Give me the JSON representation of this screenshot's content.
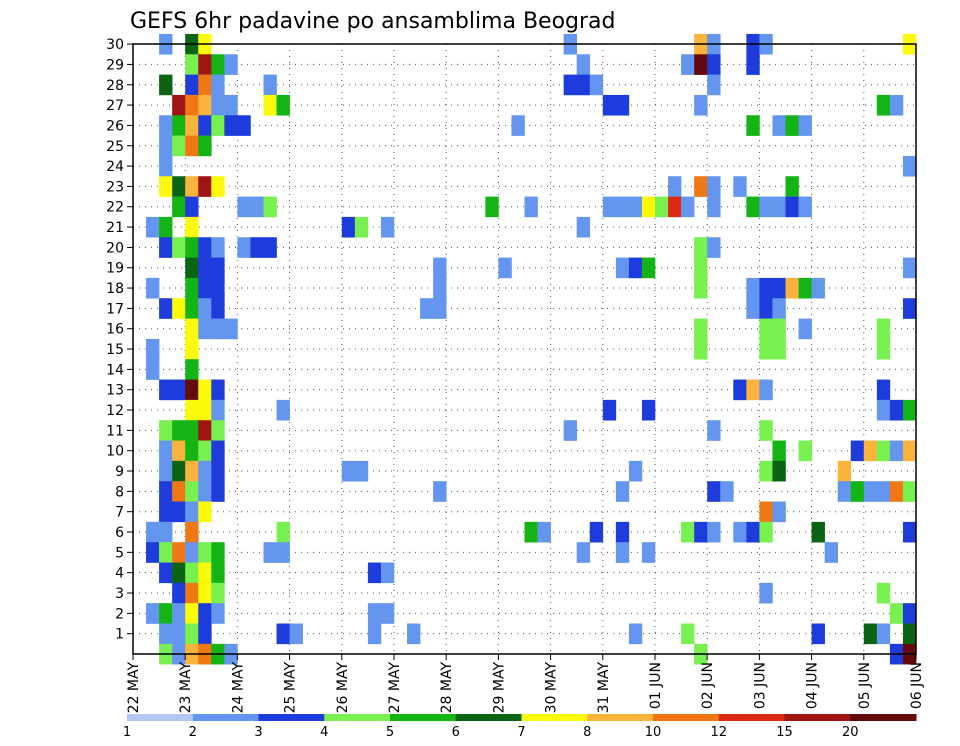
{
  "chart_data": {
    "type": "heatmap",
    "title": "GEFS 6hr padavine po ansamblima Beograd",
    "y_tick_labels": [
      "1",
      "2",
      "3",
      "4",
      "5",
      "6",
      "7",
      "8",
      "9",
      "10",
      "11",
      "12",
      "13",
      "14",
      "15",
      "16",
      "17",
      "18",
      "19",
      "20",
      "21",
      "22",
      "23",
      "24",
      "25",
      "26",
      "27",
      "28",
      "29",
      "30"
    ],
    "x_tick_labels": [
      "22 MAY",
      "23 MAY",
      "24 MAY",
      "25 MAY",
      "26 MAY",
      "27 MAY",
      "28 MAY",
      "29 MAY",
      "30 MAY",
      "31 MAY",
      "01 JUN",
      "02 JUN",
      "03 JUN",
      "04 JUN",
      "05 JUN",
      "06 JUN"
    ],
    "colorbar": {
      "colors": [
        "#b4c8f5",
        "#6496f0",
        "#1e3cdc",
        "#78f050",
        "#14b414",
        "#0a6414",
        "#fafa0a",
        "#fab43c",
        "#f07814",
        "#dc2814",
        "#a01414",
        "#640a0a"
      ],
      "labels": [
        "1",
        "2",
        "3",
        "4",
        "5",
        "6",
        "7",
        "8",
        "10",
        "12",
        "15",
        "20"
      ]
    },
    "cells": [
      [
        0.5,
        30,
        1
      ],
      [
        1,
        30,
        5
      ],
      [
        1.25,
        30,
        6
      ],
      [
        8.25,
        30,
        1
      ],
      [
        10.75,
        30,
        7
      ],
      [
        11,
        30,
        1
      ],
      [
        11.75,
        30,
        2
      ],
      [
        12,
        30,
        1
      ],
      [
        14.75,
        30,
        6
      ],
      [
        1,
        29,
        3
      ],
      [
        1.25,
        29,
        10
      ],
      [
        1.5,
        29,
        4
      ],
      [
        1.75,
        29,
        1
      ],
      [
        8.5,
        29,
        1
      ],
      [
        10.5,
        29,
        1
      ],
      [
        10.75,
        29,
        11
      ],
      [
        11,
        29,
        2
      ],
      [
        11.75,
        29,
        2
      ],
      [
        0.5,
        28,
        5
      ],
      [
        1,
        28,
        2
      ],
      [
        1.25,
        28,
        8
      ],
      [
        1.5,
        28,
        1
      ],
      [
        2.5,
        28,
        1
      ],
      [
        8.25,
        28,
        2
      ],
      [
        8.5,
        28,
        2
      ],
      [
        8.75,
        28,
        1
      ],
      [
        11,
        28,
        1
      ],
      [
        0.75,
        27,
        10
      ],
      [
        1,
        27,
        8
      ],
      [
        1.25,
        27,
        7
      ],
      [
        1.5,
        27,
        1
      ],
      [
        1.75,
        27,
        1
      ],
      [
        2.5,
        27,
        6
      ],
      [
        2.75,
        27,
        4
      ],
      [
        9,
        27,
        2
      ],
      [
        9.25,
        27,
        2
      ],
      [
        10.75,
        27,
        1
      ],
      [
        14.25,
        27,
        4
      ],
      [
        14.5,
        27,
        1
      ],
      [
        0.5,
        26,
        1
      ],
      [
        0.75,
        26,
        4
      ],
      [
        1,
        26,
        7
      ],
      [
        1.25,
        26,
        2
      ],
      [
        1.5,
        26,
        3
      ],
      [
        1.75,
        26,
        2
      ],
      [
        2,
        26,
        2
      ],
      [
        7.25,
        26,
        1
      ],
      [
        11.75,
        26,
        4
      ],
      [
        12.25,
        26,
        1
      ],
      [
        12.5,
        26,
        4
      ],
      [
        12.75,
        26,
        1
      ],
      [
        0.5,
        25,
        1
      ],
      [
        0.75,
        25,
        3
      ],
      [
        1,
        25,
        8
      ],
      [
        1.25,
        25,
        4
      ],
      [
        0.5,
        24,
        1
      ],
      [
        14.75,
        24,
        1
      ],
      [
        0.5,
        23,
        6
      ],
      [
        0.75,
        23,
        5
      ],
      [
        1,
        23,
        7
      ],
      [
        1.25,
        23,
        10
      ],
      [
        1.5,
        23,
        6
      ],
      [
        10.25,
        23,
        1
      ],
      [
        10.75,
        23,
        8
      ],
      [
        11,
        23,
        1
      ],
      [
        11.5,
        23,
        1
      ],
      [
        12.5,
        23,
        4
      ],
      [
        0.75,
        22,
        4
      ],
      [
        1,
        22,
        2
      ],
      [
        2,
        22,
        1
      ],
      [
        2.25,
        22,
        1
      ],
      [
        2.5,
        22,
        3
      ],
      [
        6.75,
        22,
        4
      ],
      [
        7.5,
        22,
        1
      ],
      [
        9,
        22,
        1
      ],
      [
        9.25,
        22,
        1
      ],
      [
        9.5,
        22,
        1
      ],
      [
        9.75,
        22,
        6
      ],
      [
        10,
        22,
        3
      ],
      [
        10.25,
        22,
        9
      ],
      [
        10.5,
        22,
        1
      ],
      [
        11,
        22,
        1
      ],
      [
        11.75,
        22,
        4
      ],
      [
        12,
        22,
        1
      ],
      [
        12.25,
        22,
        1
      ],
      [
        12.5,
        22,
        2
      ],
      [
        12.75,
        22,
        1
      ],
      [
        0.25,
        21,
        1
      ],
      [
        0.5,
        21,
        4
      ],
      [
        1,
        21,
        6
      ],
      [
        4,
        21,
        2
      ],
      [
        4.25,
        21,
        3
      ],
      [
        4.75,
        21,
        1
      ],
      [
        8.5,
        21,
        1
      ],
      [
        0.5,
        20,
        2
      ],
      [
        0.75,
        20,
        3
      ],
      [
        1,
        20,
        4
      ],
      [
        1.25,
        20,
        2
      ],
      [
        1.5,
        20,
        1
      ],
      [
        2,
        20,
        1
      ],
      [
        2.25,
        20,
        2
      ],
      [
        2.5,
        20,
        2
      ],
      [
        10.75,
        20,
        3
      ],
      [
        11,
        20,
        1
      ],
      [
        1,
        19,
        5
      ],
      [
        1.25,
        19,
        2
      ],
      [
        1.5,
        19,
        2
      ],
      [
        5.75,
        19,
        1
      ],
      [
        7,
        19,
        1
      ],
      [
        9.25,
        19,
        1
      ],
      [
        9.5,
        19,
        2
      ],
      [
        9.75,
        19,
        4
      ],
      [
        10.75,
        19,
        3
      ],
      [
        14.75,
        19,
        1
      ],
      [
        0.25,
        18,
        1
      ],
      [
        1,
        18,
        4
      ],
      [
        1.25,
        18,
        2
      ],
      [
        1.5,
        18,
        2
      ],
      [
        5.75,
        18,
        1
      ],
      [
        10.75,
        18,
        3
      ],
      [
        11.75,
        18,
        1
      ],
      [
        12,
        18,
        2
      ],
      [
        12.25,
        18,
        2
      ],
      [
        12.5,
        18,
        7
      ],
      [
        12.75,
        18,
        4
      ],
      [
        13,
        18,
        1
      ],
      [
        0.5,
        17,
        2
      ],
      [
        0.75,
        17,
        6
      ],
      [
        1,
        17,
        4
      ],
      [
        1.25,
        17,
        1
      ],
      [
        1.5,
        17,
        2
      ],
      [
        5.5,
        17,
        1
      ],
      [
        5.75,
        17,
        1
      ],
      [
        11.75,
        17,
        1
      ],
      [
        12,
        17,
        2
      ],
      [
        12.25,
        17,
        1
      ],
      [
        14.75,
        17,
        2
      ],
      [
        1,
        16,
        6
      ],
      [
        1.25,
        16,
        1
      ],
      [
        1.5,
        16,
        1
      ],
      [
        1.75,
        16,
        1
      ],
      [
        10.75,
        16,
        3
      ],
      [
        12,
        16,
        3
      ],
      [
        12.25,
        16,
        3
      ],
      [
        12.75,
        16,
        1
      ],
      [
        14.25,
        16,
        3
      ],
      [
        0.25,
        15,
        1
      ],
      [
        1,
        15,
        6
      ],
      [
        10.75,
        15,
        3
      ],
      [
        12,
        15,
        3
      ],
      [
        12.25,
        15,
        3
      ],
      [
        14.25,
        15,
        3
      ],
      [
        0.25,
        14,
        1
      ],
      [
        1,
        14,
        4
      ],
      [
        0.5,
        13,
        2
      ],
      [
        0.75,
        13,
        2
      ],
      [
        1,
        13,
        11
      ],
      [
        1.25,
        13,
        6
      ],
      [
        1.5,
        13,
        2
      ],
      [
        11.5,
        13,
        2
      ],
      [
        11.75,
        13,
        7
      ],
      [
        12,
        13,
        1
      ],
      [
        14.25,
        13,
        2
      ],
      [
        1,
        12,
        6
      ],
      [
        1.25,
        12,
        6
      ],
      [
        1.5,
        12,
        1
      ],
      [
        2.75,
        12,
        1
      ],
      [
        9,
        12,
        2
      ],
      [
        9.75,
        12,
        2
      ],
      [
        14.25,
        12,
        1
      ],
      [
        14.5,
        12,
        2
      ],
      [
        14.75,
        12,
        4
      ],
      [
        0.5,
        11,
        3
      ],
      [
        0.75,
        11,
        4
      ],
      [
        1,
        11,
        4
      ],
      [
        1.25,
        11,
        10
      ],
      [
        1.5,
        11,
        3
      ],
      [
        8.25,
        11,
        1
      ],
      [
        11,
        11,
        1
      ],
      [
        12,
        11,
        3
      ],
      [
        0.5,
        10,
        1
      ],
      [
        0.75,
        10,
        7
      ],
      [
        1,
        10,
        4
      ],
      [
        1.25,
        10,
        3
      ],
      [
        1.5,
        10,
        2
      ],
      [
        12.25,
        10,
        4
      ],
      [
        12.75,
        10,
        3
      ],
      [
        13.75,
        10,
        2
      ],
      [
        14,
        10,
        7
      ],
      [
        14.25,
        10,
        3
      ],
      [
        14.5,
        10,
        1
      ],
      [
        14.75,
        10,
        7
      ],
      [
        0.5,
        9,
        1
      ],
      [
        0.75,
        9,
        5
      ],
      [
        1,
        9,
        7
      ],
      [
        1.25,
        9,
        1
      ],
      [
        1.5,
        9,
        2
      ],
      [
        4,
        9,
        1
      ],
      [
        4.25,
        9,
        1
      ],
      [
        9.5,
        9,
        1
      ],
      [
        12,
        9,
        3
      ],
      [
        12.25,
        9,
        5
      ],
      [
        13.5,
        9,
        7
      ],
      [
        0.5,
        8,
        2
      ],
      [
        0.75,
        8,
        8
      ],
      [
        1,
        8,
        3
      ],
      [
        1.25,
        8,
        1
      ],
      [
        1.5,
        8,
        2
      ],
      [
        5.75,
        8,
        1
      ],
      [
        9.25,
        8,
        1
      ],
      [
        11,
        8,
        2
      ],
      [
        11.25,
        8,
        1
      ],
      [
        13.5,
        8,
        1
      ],
      [
        13.75,
        8,
        4
      ],
      [
        14,
        8,
        1
      ],
      [
        14.25,
        8,
        1
      ],
      [
        14.5,
        8,
        8
      ],
      [
        14.75,
        8,
        3
      ],
      [
        0.5,
        7,
        2
      ],
      [
        0.75,
        7,
        2
      ],
      [
        1,
        7,
        1
      ],
      [
        1.25,
        7,
        6
      ],
      [
        12,
        7,
        8
      ],
      [
        12.25,
        7,
        1
      ],
      [
        0.25,
        6,
        1
      ],
      [
        0.5,
        6,
        1
      ],
      [
        1,
        6,
        8
      ],
      [
        2.75,
        6,
        3
      ],
      [
        7.5,
        6,
        4
      ],
      [
        7.75,
        6,
        1
      ],
      [
        8.75,
        6,
        2
      ],
      [
        9.25,
        6,
        2
      ],
      [
        10.5,
        6,
        3
      ],
      [
        10.75,
        6,
        2
      ],
      [
        11,
        6,
        1
      ],
      [
        11.5,
        6,
        1
      ],
      [
        11.75,
        6,
        2
      ],
      [
        12,
        6,
        3
      ],
      [
        13,
        6,
        5
      ],
      [
        14.75,
        6,
        2
      ],
      [
        0.25,
        5,
        2
      ],
      [
        0.5,
        5,
        3
      ],
      [
        0.75,
        5,
        8
      ],
      [
        1,
        5,
        1
      ],
      [
        1.25,
        5,
        3
      ],
      [
        1.5,
        5,
        4
      ],
      [
        2.5,
        5,
        1
      ],
      [
        2.75,
        5,
        1
      ],
      [
        8.5,
        5,
        1
      ],
      [
        9.25,
        5,
        1
      ],
      [
        9.75,
        5,
        1
      ],
      [
        13.25,
        5,
        1
      ],
      [
        0.5,
        4,
        2
      ],
      [
        0.75,
        4,
        5
      ],
      [
        1,
        4,
        3
      ],
      [
        1.25,
        4,
        6
      ],
      [
        1.5,
        4,
        4
      ],
      [
        4.5,
        4,
        2
      ],
      [
        4.75,
        4,
        1
      ],
      [
        0.75,
        3,
        2
      ],
      [
        1,
        3,
        8
      ],
      [
        1.25,
        3,
        6
      ],
      [
        1.5,
        3,
        3
      ],
      [
        12,
        3,
        1
      ],
      [
        14.25,
        3,
        3
      ],
      [
        0.25,
        2,
        1
      ],
      [
        0.5,
        2,
        4
      ],
      [
        0.75,
        2,
        1
      ],
      [
        1,
        2,
        6
      ],
      [
        1.25,
        2,
        2
      ],
      [
        1.5,
        2,
        1
      ],
      [
        4.5,
        2,
        1
      ],
      [
        4.75,
        2,
        1
      ],
      [
        14.5,
        2,
        3
      ],
      [
        14.75,
        2,
        2
      ],
      [
        0.5,
        1,
        1
      ],
      [
        0.75,
        1,
        1
      ],
      [
        1,
        1,
        3
      ],
      [
        1.25,
        1,
        2
      ],
      [
        2.75,
        1,
        2
      ],
      [
        3,
        1,
        1
      ],
      [
        4.5,
        1,
        1
      ],
      [
        5.25,
        1,
        1
      ],
      [
        9.5,
        1,
        1
      ],
      [
        10.5,
        1,
        3
      ],
      [
        13,
        1,
        2
      ],
      [
        14,
        1,
        5
      ],
      [
        14.25,
        1,
        1
      ],
      [
        14.75,
        1,
        5
      ],
      [
        0.5,
        0,
        3
      ],
      [
        0.75,
        0,
        1
      ],
      [
        1,
        0,
        7
      ],
      [
        1.25,
        0,
        8
      ],
      [
        1.5,
        0,
        4
      ],
      [
        1.75,
        0,
        1
      ],
      [
        10.75,
        0,
        3
      ],
      [
        14.5,
        0,
        2
      ],
      [
        14.75,
        0,
        11
      ]
    ]
  }
}
